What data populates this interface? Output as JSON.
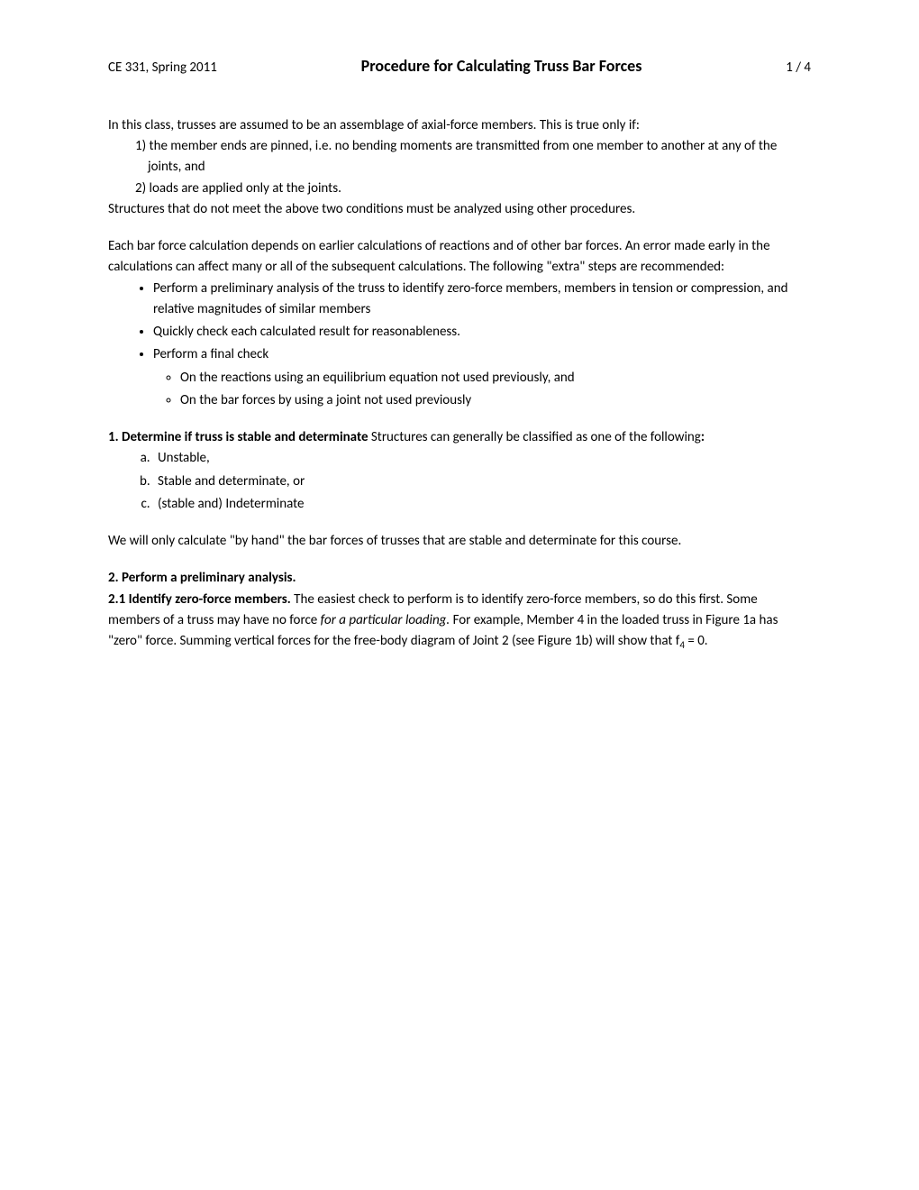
{
  "header": {
    "course": "CE 331, Spring 2011",
    "title": "Procedure for Calculating Truss Bar Forces",
    "page": "1 / 4"
  },
  "intro": {
    "p1": "In this class, trusses are assumed to be an assemblage of axial-force members. This is true only if:",
    "cond1": "1) the member ends are pinned, i.e. no bending moments are transmitted from one member to another at any of the joints, and",
    "cond2": "2) loads are applied only at the joints.",
    "p2": "Structures that do not meet the above two conditions must be analyzed using other procedures."
  },
  "error_para": "Each bar force calculation depends on earlier calculations of reactions and of other bar forces.   An error made early in the calculations can affect many or all of the subsequent calculations.  The following \"extra\" steps are recommended:",
  "bullets": {
    "b1": "Perform a preliminary analysis of the truss to identify zero-force members, members in tension or compression, and relative magnitudes of similar members",
    "b2": "Quickly check each calculated result for reasonableness.",
    "b3": "Perform a final check",
    "b3_sub1": "On the reactions using an equilibrium equation not used previously, and",
    "b3_sub2": "On the bar forces by using a joint not used previously"
  },
  "sec1": {
    "head": "1.  Determine if truss is stable and determinate",
    "tail": "  Structures can generally be classified as one of the following",
    "colon": ":",
    "a": "Unstable,",
    "b": "Stable and determinate, or",
    "c": "(stable and) Indeterminate"
  },
  "sec1_p2": "We will only calculate \"by hand\" the bar forces of trusses that are stable and determinate for this course.",
  "sec2": {
    "head": "2.  Perform a preliminary analysis.",
    "sub_head": "2.1  Identify zero-force members.",
    "body_a": "  The easiest check to perform is to identify zero-force members, so do this first. Some members of a truss may have no force ",
    "body_italic": "for a particular loading.",
    "body_b": "  For example, Member 4 in the loaded truss in Figure 1a has \"zero\" force.  Summing vertical forces for the free-body diagram of Joint 2 (see Figure 1b) will show that f",
    "sub_4": "4",
    "body_c": " = 0."
  }
}
